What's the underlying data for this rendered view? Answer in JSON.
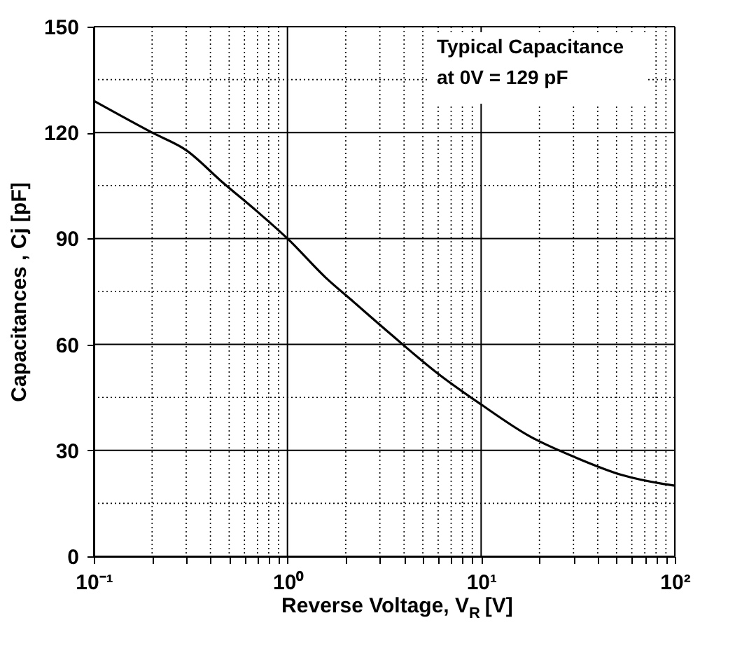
{
  "chart_data": {
    "type": "line",
    "xlabel": "Reverse Voltage, V$_{R}$ [V]",
    "ylabel": "Capacitances , Cj [pF]",
    "annotations": [
      "Typical Capacitance\nat 0V =  129 pF"
    ],
    "x": [
      0.1,
      0.2,
      0.3,
      0.46,
      0.72,
      1,
      1.57,
      2.2,
      3.4,
      5.9,
      10,
      17.8,
      30.7,
      53.5,
      87,
      100
    ],
    "series": [
      {
        "color": "#000000",
        "values": [
          129,
          120,
          115,
          106,
          97,
          90,
          79,
          72,
          63,
          52,
          43,
          34,
          28,
          23,
          20.5,
          20
        ]
      }
    ],
    "log": "x",
    "xlim": [
      0.1,
      100
    ],
    "xticks": [
      {
        "value": 0.1,
        "label": "10⁻¹"
      },
      {
        "value": 0.2,
        "label": null
      },
      {
        "value": 0.3,
        "label": null
      },
      {
        "value": 0.4,
        "label": null
      },
      {
        "value": 0.5,
        "label": null
      },
      {
        "value": 0.6,
        "label": null
      },
      {
        "value": 0.7,
        "label": null
      },
      {
        "value": 0.8,
        "label": null
      },
      {
        "value": 0.9,
        "label": null
      },
      {
        "value": 1,
        "label": "10⁰"
      },
      {
        "value": 2,
        "label": null
      },
      {
        "value": 3,
        "label": null
      },
      {
        "value": 4,
        "label": null
      },
      {
        "value": 5,
        "label": null
      },
      {
        "value": 6,
        "label": null
      },
      {
        "value": 7,
        "label": null
      },
      {
        "value": 8,
        "label": null
      },
      {
        "value": 9,
        "label": null
      },
      {
        "value": 10,
        "label": "10¹"
      },
      {
        "value": 20,
        "label": null
      },
      {
        "value": 30,
        "label": null
      },
      {
        "value": 40,
        "label": null
      },
      {
        "value": 50,
        "label": null
      },
      {
        "value": 60,
        "label": null
      },
      {
        "value": 70,
        "label": null
      },
      {
        "value": 80,
        "label": null
      },
      {
        "value": 90,
        "label": null
      },
      {
        "value": 100,
        "label": "10²"
      }
    ],
    "ylim": [
      0,
      150
    ],
    "yticks": [
      0,
      {
        "value": 15,
        "label": null
      },
      30,
      {
        "value": 45,
        "label": null
      },
      60,
      {
        "value": 75,
        "label": null
      },
      90,
      {
        "value": 105,
        "label": null
      },
      120,
      {
        "value": 135,
        "label": null
      },
      150
    ],
    "grid": true,
    "marker": "none",
    "line_style": "solid"
  }
}
